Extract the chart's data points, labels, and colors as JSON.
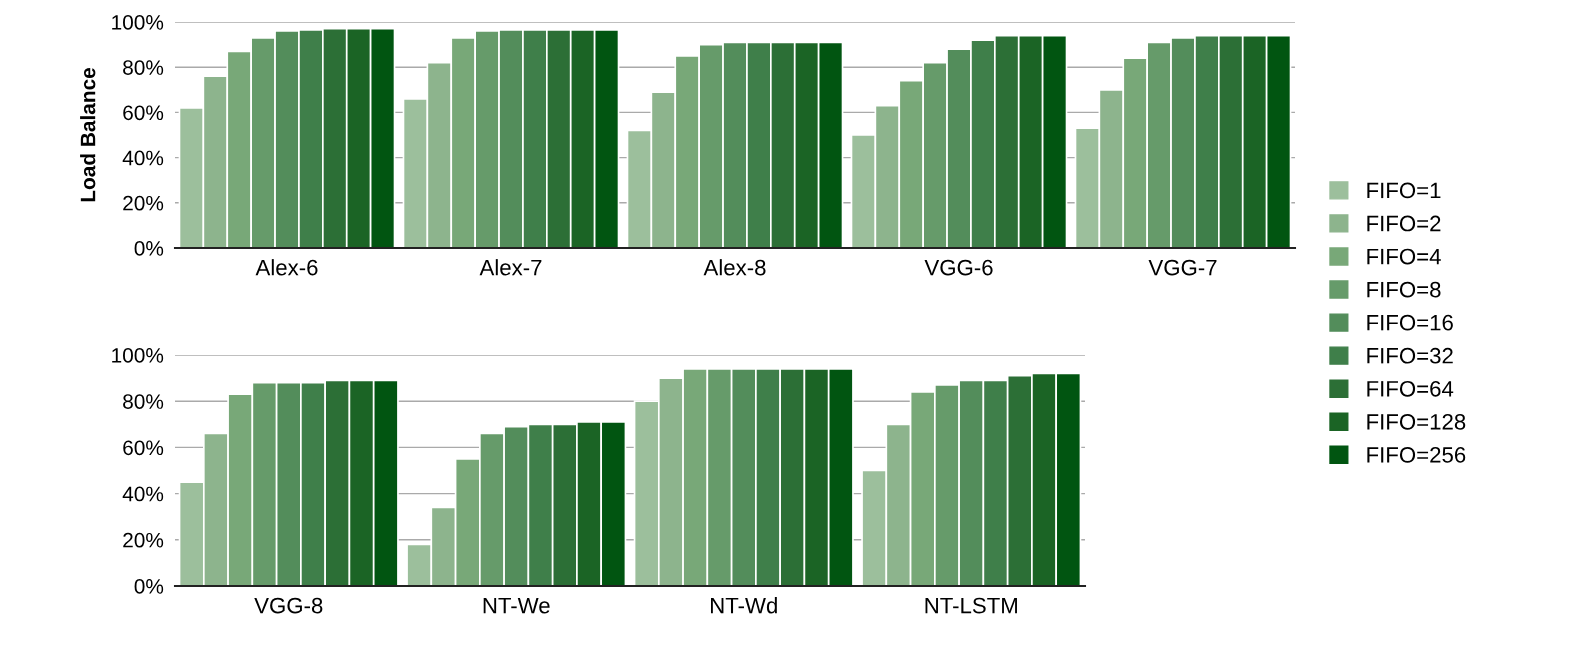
{
  "chart_data": [
    {
      "type": "bar",
      "ylabel": "Load Balance",
      "categories": [
        "Alex-6",
        "Alex-7",
        "Alex-8",
        "VGG-6",
        "VGG-7"
      ],
      "ylim": [
        0,
        100
      ],
      "yticks": [
        {
          "value": 0,
          "label": "0%"
        },
        {
          "value": 20,
          "label": "20%"
        },
        {
          "value": 40,
          "label": "40%"
        },
        {
          "value": 60,
          "label": "60%"
        },
        {
          "value": 80,
          "label": "80%"
        },
        {
          "value": 100,
          "label": "100%"
        }
      ],
      "grid": "y",
      "legend": "right",
      "series": [
        {
          "name": "FIFO=1",
          "color": "#9cbf9c",
          "values": [
            62,
            66,
            52,
            50,
            53
          ]
        },
        {
          "name": "FIFO=2",
          "color": "#8db48d",
          "values": [
            76,
            82,
            69,
            63,
            70
          ]
        },
        {
          "name": "FIFO=4",
          "color": "#78a878",
          "values": [
            87,
            93,
            85,
            74,
            84
          ]
        },
        {
          "name": "FIFO=8",
          "color": "#669b6a",
          "values": [
            93,
            96,
            90,
            82,
            91
          ]
        },
        {
          "name": "FIFO=16",
          "color": "#538d5b",
          "values": [
            96,
            96.5,
            91,
            88,
            93
          ]
        },
        {
          "name": "FIFO=32",
          "color": "#3f7f4a",
          "values": [
            96.5,
            96.5,
            91,
            92,
            94
          ]
        },
        {
          "name": "FIFO=64",
          "color": "#2c6f36",
          "values": [
            97,
            96.5,
            91,
            94,
            94
          ]
        },
        {
          "name": "FIFO=128",
          "color": "#1b6425",
          "values": [
            97,
            96.5,
            91,
            94,
            94
          ]
        },
        {
          "name": "FIFO=256",
          "color": "#015511",
          "values": [
            97,
            96.5,
            91,
            94,
            94
          ]
        }
      ]
    },
    {
      "type": "bar",
      "categories": [
        "VGG-8",
        "NT-We",
        "NT-Wd",
        "NT-LSTM"
      ],
      "ylim": [
        0,
        100
      ],
      "yticks": [
        {
          "value": 0,
          "label": "0%"
        },
        {
          "value": 20,
          "label": "20%"
        },
        {
          "value": 40,
          "label": "40%"
        },
        {
          "value": 60,
          "label": "60%"
        },
        {
          "value": 80,
          "label": "80%"
        },
        {
          "value": 100,
          "label": "100%"
        }
      ],
      "grid": "y",
      "series": [
        {
          "color": "#9cbf9c",
          "values": [
            45,
            18,
            80,
            50
          ]
        },
        {
          "color": "#8db48d",
          "values": [
            66,
            34,
            90,
            70
          ]
        },
        {
          "color": "#78a878",
          "values": [
            83,
            55,
            94,
            84
          ]
        },
        {
          "color": "#669b6a",
          "values": [
            88,
            66,
            94,
            87
          ]
        },
        {
          "color": "#538d5b",
          "values": [
            88,
            69,
            94,
            89
          ]
        },
        {
          "color": "#3f7f4a",
          "values": [
            88,
            70,
            94,
            89
          ]
        },
        {
          "color": "#2c6f36",
          "values": [
            89,
            70,
            94,
            91
          ]
        },
        {
          "color": "#1b6425",
          "values": [
            89,
            71,
            94,
            92
          ]
        },
        {
          "color": "#015511",
          "values": [
            89,
            71,
            94,
            92
          ]
        }
      ]
    }
  ]
}
